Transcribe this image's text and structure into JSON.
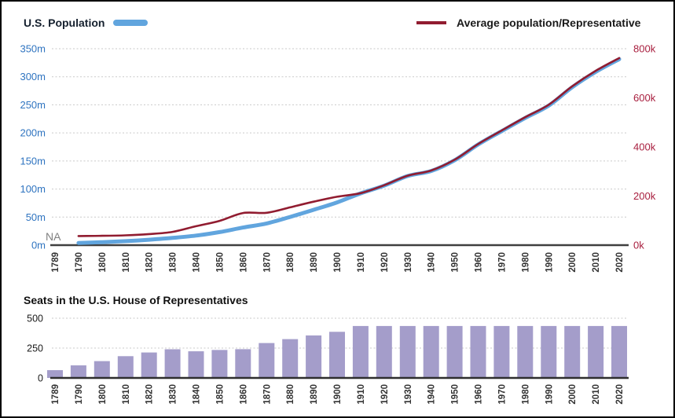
{
  "page": {
    "background": "#ffffff",
    "border_color": "#000000"
  },
  "top_chart": {
    "legend_population": "U.S. Population",
    "legend_avg": "Average population/Representative",
    "na_label": "NA",
    "left_axis_ticks": [
      "0m",
      "50m",
      "100m",
      "150m",
      "200m",
      "250m",
      "300m",
      "350m"
    ],
    "right_axis_ticks": [
      "0k",
      "200k",
      "400k",
      "600k",
      "800k"
    ],
    "colors": {
      "population_line": "#61a5de",
      "avg_line": "#911c30",
      "left_axis_text": "#2f74c0",
      "right_axis_text": "#a81e3e",
      "na_text": "#808080",
      "year_text": "#333333",
      "gridline": "#c9c9c9",
      "baseline": "#3f3f3f"
    }
  },
  "bottom_chart": {
    "title": "Seats in the U.S. House of Representatives",
    "y_ticks": [
      "0",
      "250",
      "500"
    ],
    "colors": {
      "bar": "#a49dca",
      "gridline": "#c9c9c9",
      "baseline": "#2e2e2e",
      "axis_text": "#1a1a1a",
      "year_text": "#333333"
    }
  },
  "chart_data": [
    {
      "type": "line",
      "title": "",
      "x": [
        "1789",
        "1790",
        "1800",
        "1810",
        "1820",
        "1830",
        "1840",
        "1850",
        "1860",
        "1870",
        "1880",
        "1890",
        "1900",
        "1910",
        "1920",
        "1930",
        "1940",
        "1950",
        "1960",
        "1970",
        "1980",
        "1990",
        "2000",
        "2010",
        "2020"
      ],
      "series": [
        {
          "name": "U.S. Population",
          "axis": "left",
          "units": "millions",
          "color": "#61a5de",
          "values": [
            null,
            3.9,
            5.3,
            7.2,
            9.6,
            12.9,
            17.1,
            23.2,
            31.4,
            38.6,
            50.2,
            63.0,
            76.2,
            92.2,
            106.0,
            123.2,
            132.2,
            151.3,
            179.3,
            203.2,
            226.5,
            248.7,
            281.4,
            308.7,
            331.4
          ]
        },
        {
          "name": "Average population/Representative",
          "axis": "right",
          "units": "thousands",
          "color": "#911c30",
          "values": [
            null,
            37,
            38,
            40,
            45,
            54,
            77,
            99,
            131,
            132,
            154,
            177,
            197,
            212,
            244,
            283,
            304,
            348,
            412,
            467,
            521,
            572,
            647,
            710,
            762
          ]
        }
      ],
      "left_axis": {
        "range": [
          0,
          350
        ],
        "tick_step": 50,
        "suffix": "m"
      },
      "right_axis": {
        "range": [
          0,
          800
        ],
        "tick_step": 200,
        "suffix": "k"
      },
      "grid": "horizontal-dotted",
      "legend_position": "top",
      "annotations": [
        {
          "text": "NA",
          "x": "1789"
        }
      ]
    },
    {
      "type": "bar",
      "title": "Seats in the U.S. House of Representatives",
      "categories": [
        "1789",
        "1790",
        "1800",
        "1810",
        "1820",
        "1830",
        "1840",
        "1850",
        "1860",
        "1870",
        "1880",
        "1890",
        "1900",
        "1910",
        "1920",
        "1930",
        "1940",
        "1950",
        "1960",
        "1970",
        "1980",
        "1990",
        "2000",
        "2010",
        "2020"
      ],
      "values": [
        65,
        105,
        141,
        182,
        213,
        240,
        223,
        234,
        241,
        292,
        325,
        356,
        386,
        435,
        435,
        435,
        435,
        435,
        435,
        435,
        435,
        435,
        435,
        435,
        435
      ],
      "ylim": [
        0,
        500
      ],
      "yticks": [
        0,
        250,
        500
      ],
      "grid": "horizontal-dotted",
      "bar_color": "#a49dca"
    }
  ]
}
